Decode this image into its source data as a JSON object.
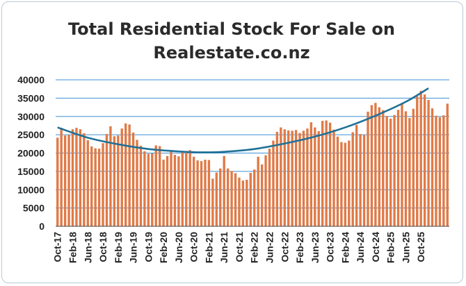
{
  "chart_data": {
    "type": "bar",
    "title_lines": [
      "Total Residential Stock For Sale on",
      "Realestate.co.nz"
    ],
    "xlabel": "",
    "ylabel": "",
    "ylim": [
      0,
      40000
    ],
    "y_ticks": [
      "0",
      "5000",
      "10000",
      "15000",
      "20000",
      "25000",
      "30000",
      "35000",
      "40000"
    ],
    "x_ticks": [
      {
        "label": "Oct-17",
        "index": 0
      },
      {
        "label": "Feb-18",
        "index": 4
      },
      {
        "label": "Jun-18",
        "index": 8
      },
      {
        "label": "Oct-18",
        "index": 12
      },
      {
        "label": "Feb-19",
        "index": 16
      },
      {
        "label": "Jun-19",
        "index": 20
      },
      {
        "label": "Oct-19",
        "index": 24
      },
      {
        "label": "Feb-20",
        "index": 28
      },
      {
        "label": "Jun-20",
        "index": 32
      },
      {
        "label": "Oct-20",
        "index": 36
      },
      {
        "label": "Feb-21",
        "index": 40
      },
      {
        "label": "Jun-21",
        "index": 44
      },
      {
        "label": "Oct-21",
        "index": 48
      },
      {
        "label": "Feb-22",
        "index": 52
      },
      {
        "label": "Jun-22",
        "index": 56
      },
      {
        "label": "Oct-22",
        "index": 60
      },
      {
        "label": "Feb-23",
        "index": 64
      },
      {
        "label": "Jun-23",
        "index": 68
      },
      {
        "label": "Oct-23",
        "index": 72
      },
      {
        "label": "Feb-24",
        "index": 76
      },
      {
        "label": "Jun-24",
        "index": 80
      },
      {
        "label": "Oct-24",
        "index": 84
      },
      {
        "label": "Feb-25",
        "index": 88
      },
      {
        "label": "Jun-25",
        "index": 92
      },
      {
        "label": "Oct-25",
        "index": 96
      }
    ],
    "series": [
      {
        "type": "bar",
        "values": [
          24200,
          26900,
          24800,
          25000,
          26500,
          26900,
          26500,
          25400,
          23500,
          21800,
          21300,
          21200,
          22700,
          25200,
          27300,
          24600,
          24800,
          26700,
          28100,
          27800,
          25600,
          23600,
          22000,
          20500,
          19800,
          19900,
          22100,
          21900,
          18200,
          19200,
          20400,
          19500,
          19100,
          20500,
          20100,
          20800,
          19000,
          18000,
          17800,
          18200,
          18100,
          13000,
          14700,
          15800,
          19200,
          15800,
          15100,
          14500,
          13300,
          12500,
          12700,
          14600,
          15500,
          19000,
          16900,
          19400,
          21200,
          23400,
          25800,
          27000,
          26500,
          26200,
          26100,
          26300,
          25500,
          26100,
          26700,
          28400,
          27000,
          26000,
          28800,
          28900,
          28300,
          26400,
          24500,
          23000,
          22800,
          23400,
          25700,
          27700,
          25200,
          24900,
          31300,
          33100,
          33700,
          32500,
          31700,
          30100,
          29400,
          30400,
          31800,
          33600,
          31400,
          29600,
          32100,
          35500,
          37000,
          36000,
          34500,
          32200,
          30200,
          29800,
          30300,
          33500
        ],
        "color": "#e07a47"
      },
      {
        "type": "line",
        "values": [
          27000,
          37700
        ],
        "note_trend": "polynomial trend",
        "trend_points": [
          {
            "i": 0,
            "v": 27000
          },
          {
            "i": 8,
            "v": 24200
          },
          {
            "i": 16,
            "v": 22400
          },
          {
            "i": 24,
            "v": 21100
          },
          {
            "i": 32,
            "v": 20450
          },
          {
            "i": 38,
            "v": 20200
          },
          {
            "i": 44,
            "v": 20350
          },
          {
            "i": 52,
            "v": 21100
          },
          {
            "i": 60,
            "v": 22600
          },
          {
            "i": 68,
            "v": 24500
          },
          {
            "i": 76,
            "v": 27000
          },
          {
            "i": 84,
            "v": 30200
          },
          {
            "i": 92,
            "v": 34000
          },
          {
            "i": 98,
            "v": 37700
          }
        ],
        "color": "#1f7096"
      }
    ],
    "grid": true,
    "colors": {
      "bar": "#e07a47",
      "trend": "#1f7096",
      "grid": "#3c8fd6",
      "axis": "#444444"
    }
  }
}
